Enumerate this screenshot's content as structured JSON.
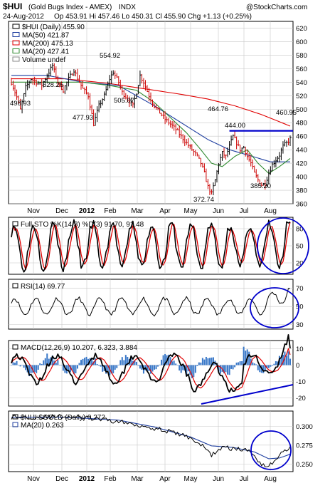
{
  "header": {
    "symbol": "$HUI",
    "name": "(Gold Bugs Index - AMEX)",
    "exchange": "INDX",
    "watermark": "@StockCharts.com",
    "date": "24-Aug-2012",
    "ohlc": "Op 453.91  Hi 457.46  Lo 450.31  Cl 455.90  Chg +1.13 (+0.25%)"
  },
  "colors": {
    "price_up": "#000000",
    "price_down": "#cc0000",
    "ma50": "#1f3fa0",
    "ma200": "#e00000",
    "ma20": "#2f8a2f",
    "stoch_k": "#000000",
    "stoch_d": "#e00000",
    "rsi": "#000000",
    "macd": "#000000",
    "macd_signal": "#e00000",
    "macd_hist": "#3a78c8",
    "ratio": "#000000",
    "ratio_ma": "#1f3fa0",
    "annotation": "#0000cc",
    "grid": "#c8c8c8"
  },
  "x_axis": {
    "months_top": [
      "Nov",
      "Dec",
      "2012",
      "Feb",
      "Mar",
      "Apr",
      "May",
      "Jun",
      "Jul",
      "Aug"
    ],
    "months_bottom": [
      "Nov",
      "Dec",
      "2012",
      "Feb",
      "Mar",
      "Apr",
      "May",
      "Jun",
      "Jul",
      "Aug"
    ]
  },
  "chart_data": [
    {
      "type": "line",
      "title": "$HUI (Daily) 455.90",
      "legend": [
        {
          "label": "$HUI (Daily) 455.90"
        },
        {
          "label": "MA(50) 421.87"
        },
        {
          "label": "MA(200) 475.13"
        },
        {
          "label": "MA(20) 427.41"
        },
        {
          "label": "Volume undef"
        }
      ],
      "legend_position": "top-left",
      "ylim": [
        360,
        630
      ],
      "yticks": [
        "620",
        "600",
        "580",
        "560",
        "540",
        "520",
        "500",
        "480",
        "460",
        "440",
        "420",
        "400",
        "380",
        "360"
      ],
      "annotations": [
        "554.92",
        "528.26",
        "498.93",
        "477.93",
        "505.07",
        "464.76",
        "444.00",
        "460.95",
        "385.20",
        "372.74"
      ],
      "close_path": [
        [
          0,
          540
        ],
        [
          3,
          518
        ],
        [
          5,
          499
        ],
        [
          8,
          532
        ],
        [
          11,
          545
        ],
        [
          14,
          540
        ],
        [
          17,
          536
        ],
        [
          20,
          550
        ],
        [
          23,
          565
        ],
        [
          26,
          540
        ],
        [
          29,
          528
        ],
        [
          32,
          545
        ],
        [
          35,
          558
        ],
        [
          37,
          546
        ],
        [
          40,
          530
        ],
        [
          43,
          520
        ],
        [
          46,
          478
        ],
        [
          49,
          505
        ],
        [
          52,
          520
        ],
        [
          55,
          545
        ],
        [
          57,
          555
        ],
        [
          60,
          540
        ],
        [
          62,
          525
        ],
        [
          65,
          515
        ],
        [
          68,
          505
        ],
        [
          70,
          525
        ],
        [
          72,
          550
        ],
        [
          74,
          540
        ],
        [
          77,
          520
        ],
        [
          80,
          505
        ],
        [
          83,
          495
        ],
        [
          86,
          485
        ],
        [
          89,
          478
        ],
        [
          92,
          470
        ],
        [
          95,
          460
        ],
        [
          98,
          450
        ],
        [
          101,
          440
        ],
        [
          104,
          430
        ],
        [
          106,
          420
        ],
        [
          108,
          405
        ],
        [
          110,
          385
        ],
        [
          112,
          375
        ],
        [
          114,
          395
        ],
        [
          116,
          420
        ],
        [
          118,
          435
        ],
        [
          120,
          430
        ],
        [
          122,
          445
        ],
        [
          124,
          460
        ],
        [
          126,
          450
        ],
        [
          128,
          440
        ],
        [
          130,
          444
        ],
        [
          132,
          430
        ],
        [
          134,
          420
        ],
        [
          136,
          405
        ],
        [
          138,
          395
        ],
        [
          140,
          388
        ],
        [
          142,
          390
        ],
        [
          144,
          405
        ],
        [
          146,
          418
        ],
        [
          148,
          425
        ],
        [
          150,
          432
        ],
        [
          152,
          445
        ],
        [
          154,
          450
        ],
        [
          156,
          456
        ]
      ],
      "ma50_path": [
        [
          0,
          550
        ],
        [
          20,
          550
        ],
        [
          40,
          540
        ],
        [
          60,
          535
        ],
        [
          80,
          505
        ],
        [
          95,
          480
        ],
        [
          110,
          455
        ],
        [
          122,
          440
        ],
        [
          135,
          430
        ],
        [
          145,
          422
        ],
        [
          156,
          422
        ]
      ],
      "ma200_path": [
        [
          0,
          545
        ],
        [
          30,
          545
        ],
        [
          55,
          538
        ],
        [
          75,
          530
        ],
        [
          95,
          522
        ],
        [
          110,
          515
        ],
        [
          125,
          505
        ],
        [
          140,
          492
        ],
        [
          156,
          475
        ]
      ],
      "ma20_path": [
        [
          0,
          540
        ],
        [
          20,
          540
        ],
        [
          40,
          540
        ],
        [
          55,
          535
        ],
        [
          70,
          528
        ],
        [
          80,
          510
        ],
        [
          90,
          485
        ],
        [
          98,
          465
        ],
        [
          106,
          440
        ],
        [
          112,
          420
        ],
        [
          118,
          415
        ],
        [
          125,
          430
        ],
        [
          132,
          440
        ],
        [
          138,
          420
        ],
        [
          144,
          405
        ],
        [
          150,
          415
        ],
        [
          156,
          427
        ]
      ],
      "resistance_line": [
        [
          122,
          468
        ],
        [
          156,
          468
        ]
      ]
    },
    {
      "type": "line",
      "title": "Full STO %K(14,3) %D(3) 91.70, 91.48",
      "series": [
        {
          "name": "%K(14,3)"
        },
        {
          "name": "%D(3)"
        }
      ],
      "ylim": [
        0,
        100
      ],
      "yticks": [
        "80",
        "50",
        "20"
      ],
      "k_last": 91.7,
      "d_last": 91.48
    },
    {
      "type": "line",
      "title": "RSI(14) 69.77",
      "ylim": [
        25,
        80
      ],
      "yticks": [
        "70",
        "50",
        "30"
      ],
      "last": 69.77
    },
    {
      "type": "line",
      "title": "MACD(12,26,9) 10.207, 6.323, 3.884",
      "series": [
        {
          "name": "MACD"
        },
        {
          "name": "Signal"
        },
        {
          "name": "Histogram"
        }
      ],
      "ylim": [
        -25,
        15
      ],
      "yticks": [
        "10",
        "0",
        "-10",
        "-20"
      ],
      "macd_last": 10.207,
      "signal_last": 6.323,
      "hist_last": 3.884
    },
    {
      "type": "line",
      "title": "$HUI:$GOLD (Daily) 0.272",
      "legend": [
        {
          "label": "$HUI:$GOLD (Daily) 0.272"
        },
        {
          "label": "MA(20) 0.263"
        }
      ],
      "ylim": [
        0.24,
        0.32
      ],
      "yticks": [
        "0.300",
        "0.275",
        "0.250"
      ],
      "last": 0.272,
      "ma_last": 0.263,
      "close_path": [
        [
          0,
          0.312
        ],
        [
          15,
          0.312
        ],
        [
          30,
          0.313
        ],
        [
          45,
          0.31
        ],
        [
          60,
          0.306
        ],
        [
          75,
          0.3
        ],
        [
          90,
          0.292
        ],
        [
          100,
          0.285
        ],
        [
          108,
          0.272
        ],
        [
          112,
          0.262
        ],
        [
          118,
          0.272
        ],
        [
          126,
          0.27
        ],
        [
          134,
          0.267
        ],
        [
          140,
          0.25
        ],
        [
          144,
          0.247
        ],
        [
          150,
          0.262
        ],
        [
          156,
          0.272
        ]
      ],
      "ma_path": [
        [
          0,
          0.312
        ],
        [
          30,
          0.312
        ],
        [
          60,
          0.308
        ],
        [
          80,
          0.299
        ],
        [
          100,
          0.286
        ],
        [
          112,
          0.274
        ],
        [
          124,
          0.272
        ],
        [
          136,
          0.266
        ],
        [
          144,
          0.257
        ],
        [
          150,
          0.258
        ],
        [
          156,
          0.263
        ]
      ]
    }
  ]
}
